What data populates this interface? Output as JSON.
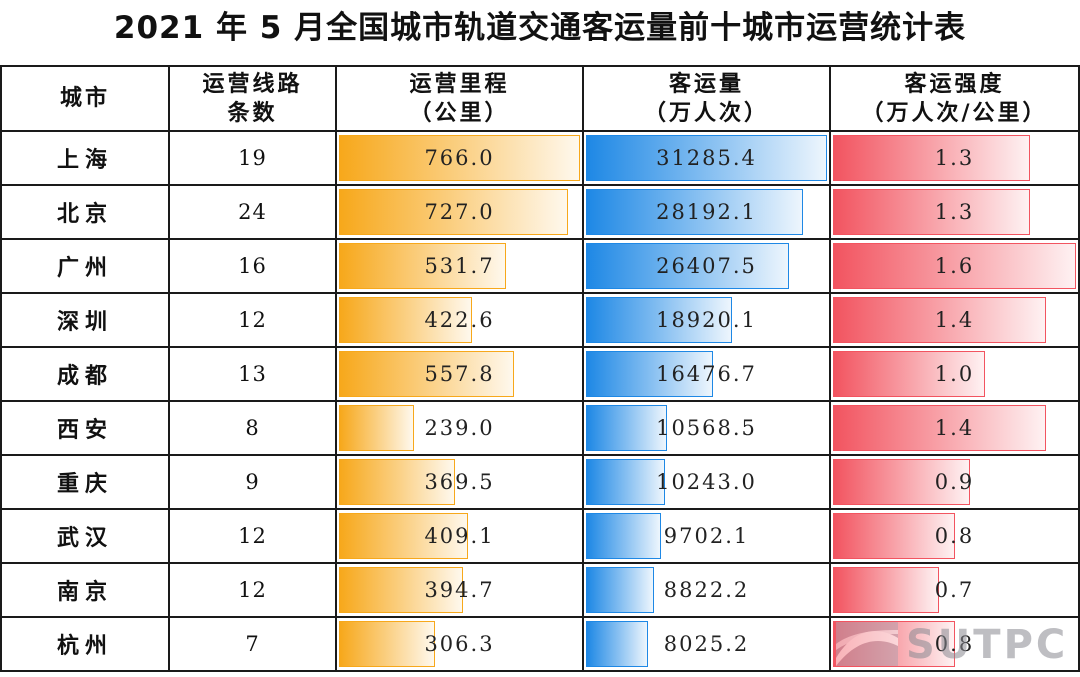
{
  "title": "2021 年 5 月全国城市轨道交通客运量前十城市运营统计表",
  "headers": {
    "city": "城市",
    "lines_1": "运营线路",
    "lines_2": "条数",
    "mileage_1": "运营里程",
    "mileage_2": "（公里）",
    "volume_1": "客运量",
    "volume_2": "（万人次）",
    "intensity_1": "客运强度",
    "intensity_2": "（万人次/公里）"
  },
  "colors": {
    "mileage": "#f7a81b",
    "volume": "#1e88e5",
    "intensity": "#f25460"
  },
  "logo_text": "SUTPC",
  "chart_data": {
    "type": "table",
    "title": "2021 年 5 月全国城市轨道交通客运量前十城市运营统计表",
    "columns": [
      "城市",
      "运营线路条数",
      "运营里程（公里）",
      "客运量（万人次）",
      "客运强度（万人次/公里）"
    ],
    "rows": [
      {
        "city": "上海",
        "lines": "19",
        "mileage": "766.0",
        "volume": "31285.4",
        "intensity": "1.3"
      },
      {
        "city": "北京",
        "lines": "24",
        "mileage": "727.0",
        "volume": "28192.1",
        "intensity": "1.3"
      },
      {
        "city": "广州",
        "lines": "16",
        "mileage": "531.7",
        "volume": "26407.5",
        "intensity": "1.6"
      },
      {
        "city": "深圳",
        "lines": "12",
        "mileage": "422.6",
        "volume": "18920.1",
        "intensity": "1.4"
      },
      {
        "city": "成都",
        "lines": "13",
        "mileage": "557.8",
        "volume": "16476.7",
        "intensity": "1.0"
      },
      {
        "city": "西安",
        "lines": "8",
        "mileage": "239.0",
        "volume": "10568.5",
        "intensity": "1.4"
      },
      {
        "city": "重庆",
        "lines": "9",
        "mileage": "369.5",
        "volume": "10243.0",
        "intensity": "0.9"
      },
      {
        "city": "武汉",
        "lines": "12",
        "mileage": "409.1",
        "volume": "9702.1",
        "intensity": "0.8"
      },
      {
        "city": "南京",
        "lines": "12",
        "mileage": "394.7",
        "volume": "8822.2",
        "intensity": "0.7"
      },
      {
        "city": "杭州",
        "lines": "7",
        "mileage": "306.3",
        "volume": "8025.2",
        "intensity": "0.8"
      }
    ]
  }
}
